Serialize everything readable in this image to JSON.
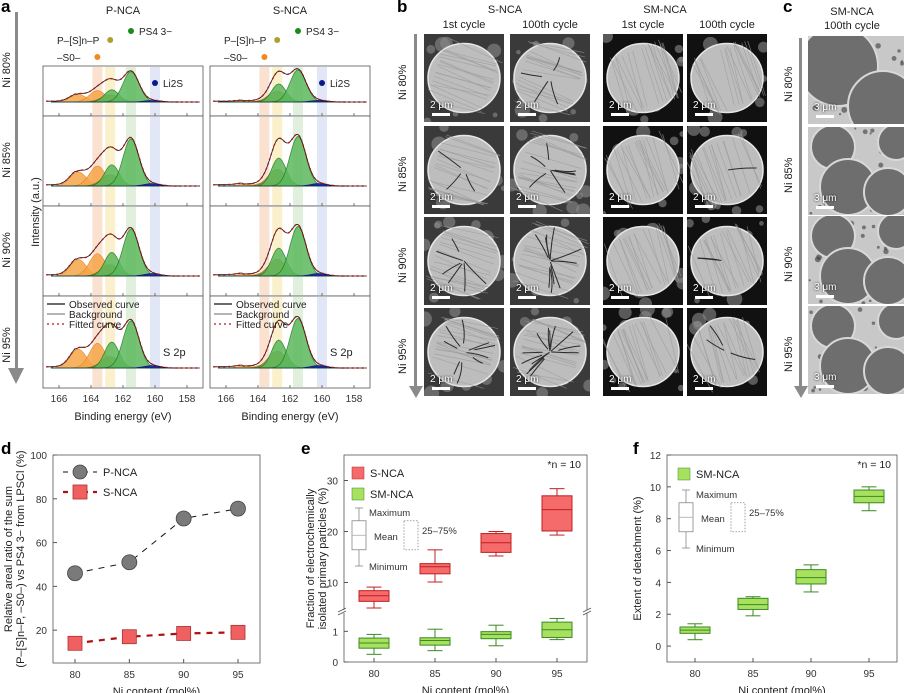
{
  "panels": {
    "a": {
      "letter": "a",
      "columns": [
        "P-NCA",
        "S-NCA"
      ],
      "rows": [
        "Ni 80%",
        "Ni 85%",
        "Ni 90%",
        "Ni 95%"
      ],
      "ylabel": "Intensity (a.u.)",
      "xlabel": "Binding energy (eV)",
      "xticks": [
        "166",
        "164",
        "162",
        "160",
        "158"
      ],
      "xlim": [
        167,
        157
      ],
      "peak_labels": {
        "psp": "P–[S]n–P",
        "s0": "–S0–",
        "ps4": "PS4 3−",
        "li2s": "Li2S"
      },
      "peak_positions_eV": {
        "s0": 163.6,
        "psp": 162.8,
        "ps4": 161.5,
        "li2s": 160.0
      },
      "legend": [
        "Observed curve",
        "Background",
        "Fitted curve"
      ],
      "region_label": "S 2p",
      "colors": {
        "orange": "#f5a040",
        "olive": "#a89a2a",
        "green": "#3aa83a",
        "blue": "#1a2a9a",
        "fit": "#b01818"
      }
    },
    "b": {
      "letter": "b",
      "groups": [
        {
          "name": "S-NCA",
          "cycles": [
            "1st cycle",
            "100th cycle"
          ]
        },
        {
          "name": "SM-NCA",
          "cycles": [
            "1st cycle",
            "100th cycle"
          ]
        }
      ],
      "rows": [
        "Ni 80%",
        "Ni 85%",
        "Ni 90%",
        "Ni 95%"
      ],
      "scale": "2 μm"
    },
    "c": {
      "letter": "c",
      "title": "SM-NCA",
      "subtitle": "100th cycle",
      "rows": [
        "Ni 80%",
        "Ni 85%",
        "Ni 90%",
        "Ni 95%"
      ],
      "scales": [
        "3 μm",
        "3 μm",
        "3 μm",
        "3 μm"
      ]
    }
  },
  "chart_data": [
    {
      "id": "d",
      "letter": "d",
      "type": "line",
      "title": "",
      "xlabel": "Ni content (mol%)",
      "ylabel_line1": "Relative areal ratio of the sum",
      "ylabel_line2": "(P–[S]n–P, –S0–) vs PS4 3− from LPSCl (%)",
      "x": [
        80,
        85,
        90,
        95
      ],
      "xticks": [
        "80",
        "85",
        "90",
        "95"
      ],
      "ylim": [
        5,
        100
      ],
      "yticks": [
        20,
        40,
        60,
        80,
        100
      ],
      "legend_position": "top-left",
      "series": [
        {
          "name": "P-NCA",
          "values": [
            46,
            51,
            71,
            75.5
          ],
          "marker": "circle",
          "color": "#7a7a7a",
          "line": "#111111"
        },
        {
          "name": "S-NCA",
          "values": [
            14,
            17,
            18.5,
            19
          ],
          "marker": "square",
          "color": "#f06060",
          "line": "#b01010"
        }
      ]
    },
    {
      "id": "e",
      "letter": "e",
      "type": "box",
      "xlabel": "Ni content (mol%)",
      "ylabel_line1": "Fraction of electrochemically",
      "ylabel_line2": "isolated primary particles (%)",
      "x": [
        80,
        85,
        90,
        95
      ],
      "xticks": [
        "80",
        "85",
        "90",
        "95"
      ],
      "broken_axis": {
        "lower": [
          0,
          1.5
        ],
        "upper": [
          5,
          35
        ]
      },
      "yticks_upper": [
        10,
        20,
        30
      ],
      "yticks_lower": [
        0,
        1
      ],
      "annotation": "*n = 10",
      "legend_position": "top-left",
      "key": {
        "max": "Maximum",
        "mean": "Mean",
        "min": "Minimum",
        "iqr": "25–75%"
      },
      "series": [
        {
          "name": "S-NCA",
          "color": "#f56a6a",
          "edge": "#c02020",
          "boxes": [
            {
              "min": 5.0,
              "q1": 6.3,
              "mean": 7.4,
              "q3": 8.4,
              "max": 9.1
            },
            {
              "min": 10.1,
              "q1": 11.7,
              "mean": 13.1,
              "q3": 13.7,
              "max": 16.4
            },
            {
              "min": 15.2,
              "q1": 15.9,
              "mean": 17.8,
              "q3": 19.6,
              "max": 20.0
            },
            {
              "min": 19.3,
              "q1": 20.1,
              "mean": 24.3,
              "q3": 27.0,
              "max": 28.4
            }
          ]
        },
        {
          "name": "SM-NCA",
          "color": "#a8e060",
          "edge": "#3a8a20",
          "boxes": [
            {
              "min": 0.25,
              "q1": 0.45,
              "mean": 0.62,
              "q3": 0.78,
              "max": 0.9
            },
            {
              "min": 0.37,
              "q1": 0.55,
              "mean": 0.7,
              "q3": 0.79,
              "max": 1.07
            },
            {
              "min": 0.53,
              "q1": 0.76,
              "mean": 0.9,
              "q3": 0.99,
              "max": 1.2
            },
            {
              "min": 0.73,
              "q1": 0.8,
              "mean": 1.05,
              "q3": 1.3,
              "max": 1.42
            }
          ]
        }
      ]
    },
    {
      "id": "f",
      "letter": "f",
      "type": "box",
      "xlabel": "Ni content (mol%)",
      "ylabel": "Extent of detachment (%)",
      "x": [
        80,
        85,
        90,
        95
      ],
      "xticks": [
        "80",
        "85",
        "90",
        "95"
      ],
      "ylim": [
        -1,
        12
      ],
      "yticks": [
        0,
        2,
        4,
        6,
        8,
        10,
        12
      ],
      "annotation": "*n = 10",
      "legend_position": "top-left",
      "key": {
        "max": "Maximum",
        "mean": "Mean",
        "min": "Minimum",
        "iqr": "25–75%"
      },
      "series": [
        {
          "name": "SM-NCA",
          "color": "#a8e060",
          "edge": "#3a8a20",
          "boxes": [
            {
              "min": 0.4,
              "q1": 0.8,
              "mean": 1.0,
              "q3": 1.2,
              "max": 1.4
            },
            {
              "min": 1.9,
              "q1": 2.3,
              "mean": 2.6,
              "q3": 3.0,
              "max": 3.1
            },
            {
              "min": 3.4,
              "q1": 3.9,
              "mean": 4.3,
              "q3": 4.8,
              "max": 5.1
            },
            {
              "min": 8.5,
              "q1": 9.0,
              "mean": 9.4,
              "q3": 9.8,
              "max": 10.0
            }
          ]
        }
      ]
    }
  ]
}
